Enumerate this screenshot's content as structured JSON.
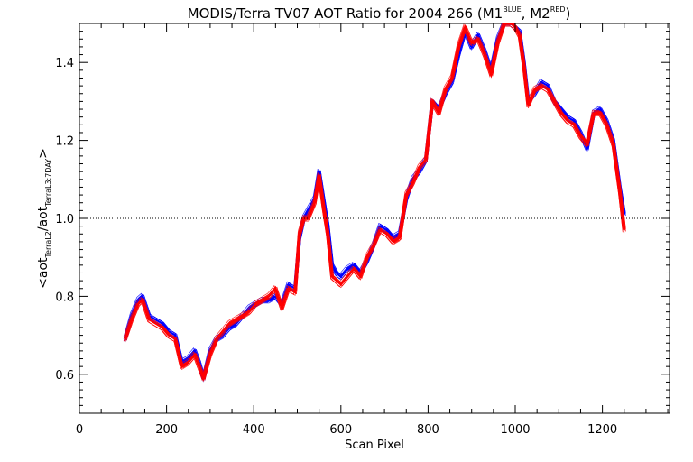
{
  "chart_data": {
    "type": "line",
    "title": {
      "main": "MODIS/Terra TV07 AOT Ratio for 2004 266 (M1",
      "sup1": "BLUE",
      "mid": ", M2",
      "sup2": "RED",
      "end": ")"
    },
    "xlabel": "Scan Pixel",
    "ylabel": {
      "pre": "<aot",
      "sub1": "TerraL2",
      "mid": "/aot",
      "sub2": "TerraL3:7DAY",
      "post": ">"
    },
    "xlim": [
      0,
      1354
    ],
    "ylim": [
      0.5,
      1.5
    ],
    "xticks": [
      0,
      200,
      400,
      600,
      800,
      1000,
      1200
    ],
    "yticks": [
      0.6,
      0.8,
      1.0,
      1.2,
      1.4
    ],
    "ytick_labels": [
      "0.6",
      "0.8",
      "1.0",
      "1.2",
      "1.4"
    ],
    "reference_line": {
      "y": 1.0,
      "style": "dotted"
    },
    "x": [
      105,
      120,
      135,
      145,
      160,
      175,
      190,
      205,
      220,
      235,
      250,
      265,
      275,
      285,
      300,
      315,
      330,
      345,
      360,
      375,
      390,
      405,
      420,
      435,
      450,
      465,
      480,
      495,
      505,
      515,
      525,
      540,
      550,
      560,
      570,
      580,
      590,
      600,
      615,
      630,
      645,
      660,
      675,
      690,
      705,
      720,
      735,
      750,
      765,
      780,
      795,
      810,
      825,
      840,
      855,
      870,
      885,
      900,
      915,
      930,
      945,
      960,
      975,
      990,
      1000,
      1010,
      1020,
      1030,
      1045,
      1060,
      1075,
      1090,
      1105,
      1120,
      1135,
      1150,
      1165,
      1180,
      1195,
      1210,
      1225,
      1240,
      1250
    ],
    "series": [
      {
        "color": "#0000ff",
        "values": [
          0.69,
          0.75,
          0.79,
          0.8,
          0.75,
          0.74,
          0.73,
          0.71,
          0.7,
          0.63,
          0.64,
          0.66,
          0.63,
          0.59,
          0.66,
          0.69,
          0.7,
          0.72,
          0.73,
          0.75,
          0.77,
          0.78,
          0.79,
          0.79,
          0.8,
          0.78,
          0.83,
          0.82,
          0.95,
          1.0,
          1.02,
          1.05,
          1.12,
          1.05,
          0.98,
          0.88,
          0.86,
          0.85,
          0.87,
          0.88,
          0.86,
          0.89,
          0.93,
          0.98,
          0.97,
          0.95,
          0.96,
          1.05,
          1.1,
          1.12,
          1.15,
          1.3,
          1.28,
          1.32,
          1.35,
          1.42,
          1.48,
          1.44,
          1.47,
          1.43,
          1.38,
          1.46,
          1.5,
          1.5,
          1.49,
          1.48,
          1.4,
          1.3,
          1.32,
          1.35,
          1.34,
          1.3,
          1.28,
          1.26,
          1.25,
          1.22,
          1.18,
          1.27,
          1.28,
          1.25,
          1.2,
          1.08,
          1.01
        ]
      },
      {
        "color": "#ff0000",
        "values": [
          0.69,
          0.74,
          0.78,
          0.79,
          0.74,
          0.73,
          0.72,
          0.7,
          0.69,
          0.62,
          0.63,
          0.65,
          0.62,
          0.59,
          0.65,
          0.69,
          0.71,
          0.73,
          0.74,
          0.75,
          0.76,
          0.78,
          0.79,
          0.8,
          0.82,
          0.77,
          0.82,
          0.81,
          0.96,
          1.0,
          1.0,
          1.04,
          1.11,
          1.03,
          0.96,
          0.85,
          0.84,
          0.83,
          0.85,
          0.87,
          0.85,
          0.9,
          0.93,
          0.97,
          0.96,
          0.94,
          0.95,
          1.06,
          1.09,
          1.13,
          1.15,
          1.3,
          1.27,
          1.33,
          1.36,
          1.44,
          1.49,
          1.45,
          1.46,
          1.42,
          1.37,
          1.45,
          1.5,
          1.5,
          1.49,
          1.47,
          1.39,
          1.29,
          1.33,
          1.34,
          1.33,
          1.3,
          1.27,
          1.25,
          1.24,
          1.21,
          1.19,
          1.27,
          1.27,
          1.24,
          1.19,
          1.07,
          0.97
        ]
      }
    ]
  }
}
